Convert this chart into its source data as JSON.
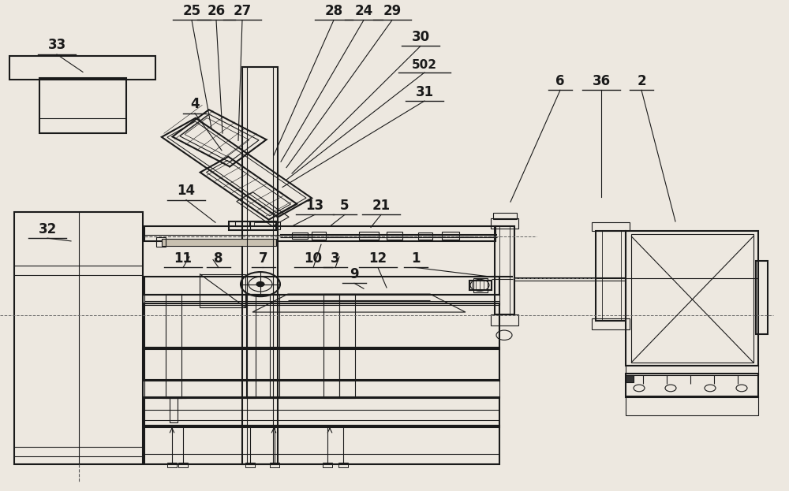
{
  "bg_color": "#ede8e0",
  "line_color": "#1a1a1a",
  "fig_width": 10.0,
  "fig_height": 6.23,
  "dpi": 100,
  "labels_data": {
    "33": [
      0.072,
      0.895,
      0.105,
      0.855
    ],
    "25": [
      0.243,
      0.965,
      0.268,
      0.74
    ],
    "26": [
      0.274,
      0.965,
      0.282,
      0.73
    ],
    "27": [
      0.307,
      0.965,
      0.302,
      0.715
    ],
    "28": [
      0.423,
      0.965,
      0.347,
      0.685
    ],
    "24": [
      0.461,
      0.965,
      0.356,
      0.672
    ],
    "29": [
      0.497,
      0.965,
      0.363,
      0.66
    ],
    "30": [
      0.533,
      0.912,
      0.37,
      0.648
    ],
    "502": [
      0.538,
      0.858,
      0.363,
      0.635
    ],
    "31": [
      0.538,
      0.8,
      0.358,
      0.62
    ],
    "4": [
      0.247,
      0.775,
      0.281,
      0.695
    ],
    "14": [
      0.236,
      0.598,
      0.273,
      0.548
    ],
    "13": [
      0.399,
      0.568,
      0.372,
      0.542
    ],
    "5": [
      0.437,
      0.568,
      0.418,
      0.54
    ],
    "21": [
      0.483,
      0.568,
      0.47,
      0.538
    ],
    "11": [
      0.232,
      0.46,
      0.24,
      0.478
    ],
    "8": [
      0.277,
      0.46,
      0.27,
      0.472
    ],
    "7": [
      0.334,
      0.46,
      0.332,
      0.456
    ],
    "10": [
      0.397,
      0.46,
      0.407,
      0.503
    ],
    "3": [
      0.425,
      0.46,
      0.43,
      0.478
    ],
    "12": [
      0.479,
      0.46,
      0.49,
      0.415
    ],
    "9": [
      0.449,
      0.428,
      0.461,
      0.413
    ],
    "1": [
      0.527,
      0.46,
      0.618,
      0.438
    ],
    "6": [
      0.71,
      0.822,
      0.647,
      0.59
    ],
    "36": [
      0.762,
      0.822,
      0.762,
      0.6
    ],
    "2": [
      0.813,
      0.822,
      0.856,
      0.55
    ],
    "32": [
      0.06,
      0.52,
      0.09,
      0.51
    ]
  }
}
